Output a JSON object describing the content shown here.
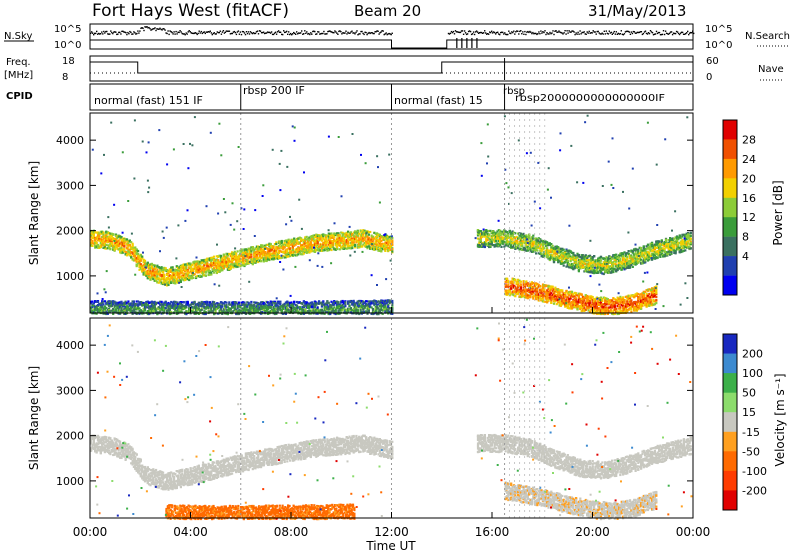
{
  "header": {
    "station": "Fort Hays West (fitACF)",
    "beam": "Beam 20",
    "date": "31/May/2013"
  },
  "panels": {
    "sky": {
      "left_label": "N.Sky",
      "left_ticks": [
        "10^5",
        "10^0"
      ],
      "right_ticks": [
        "10^5",
        "10^0"
      ],
      "right_label": "N.Search"
    },
    "freq": {
      "left_label_1": "Freq.",
      "left_label_2": "[MHz]",
      "left_ticks": [
        "18",
        "8"
      ],
      "right_ticks": [
        "60",
        "0"
      ],
      "right_label": "Nave"
    },
    "cpid": {
      "label": "CPID",
      "segments": [
        {
          "text": "normal (fast) 151 IF",
          "start": 0.0
        },
        {
          "text": "rbsp 200 IF",
          "start": 6.0
        },
        {
          "text": "normal (fast) 15",
          "start": 12.0
        },
        {
          "text": "rbsp",
          "start": 16.5
        }
      ],
      "dense_label": "rbsp2000000000000000IF"
    }
  },
  "colorbars": {
    "power": {
      "label": "Power [dB]",
      "ticks": [
        "28",
        "24",
        "20",
        "16",
        "12",
        "8",
        "4"
      ],
      "colors": [
        "#e00000",
        "#f05000",
        "#ff9a00",
        "#f2d000",
        "#8ccc38",
        "#3a9c3a",
        "#3a7060",
        "#2040b0",
        "#0000f0"
      ]
    },
    "velocity": {
      "label": "Velocity [m s⁻¹]",
      "ticks": [
        "200",
        "100",
        "50",
        "15",
        "-15",
        "-50",
        "-100",
        "-200"
      ],
      "colors": [
        "#1828c0",
        "#3c8ad0",
        "#3cb04a",
        "#8cdc6c",
        "#c8c8c0",
        "#ffa020",
        "#ff6a00",
        "#ff3c00",
        "#e00000"
      ]
    }
  },
  "axes": {
    "ylabel": "Slant Range [km]",
    "xlabel": "Time UT",
    "yticks": [
      "4000",
      "3000",
      "2000",
      "1000"
    ],
    "xticks": [
      "00:00",
      "04:00",
      "08:00",
      "12:00",
      "16:00",
      "20:00",
      "00:00"
    ]
  },
  "chart_data": [
    {
      "type": "heatmap",
      "title": "Power [dB]",
      "xlabel": "",
      "ylabel": "Slant Range [km]",
      "xlim": [
        0,
        24
      ],
      "ylim": [
        180,
        4600
      ],
      "clim": [
        0,
        30
      ],
      "bands": [
        {
          "t": [
            0,
            0.8,
            1.5,
            2.2,
            3.0,
            4.5,
            6.0,
            7.5,
            9.0,
            10.0,
            10.8,
            12.0
          ],
          "range": [
            1850,
            1800,
            1650,
            1150,
            1000,
            1200,
            1420,
            1600,
            1750,
            1800,
            1850,
            1700
          ],
          "power": 18
        },
        {
          "t": [
            15.4,
            16.5,
            17.5,
            18.5,
            19.5,
            20.5,
            21.5,
            22.5,
            23.9
          ],
          "range": [
            1850,
            1850,
            1750,
            1500,
            1300,
            1250,
            1400,
            1600,
            1800
          ],
          "power": 14
        },
        {
          "t": [
            16.5,
            18.0,
            19.0,
            20.0,
            20.8,
            21.6,
            22.5
          ],
          "range": [
            800,
            650,
            500,
            380,
            350,
            420,
            600
          ],
          "power": 22
        },
        {
          "t": [
            0,
            2.0,
            4.0,
            6.0,
            8.0,
            10.0,
            12.0
          ],
          "range": [
            280,
            270,
            260,
            260,
            270,
            280,
            300
          ],
          "power": 8
        }
      ],
      "gaps": [
        [
          12.0,
          15.3
        ]
      ]
    },
    {
      "type": "heatmap",
      "title": "Velocity [m s⁻¹]",
      "xlabel": "Time UT",
      "ylabel": "Slant Range [km]",
      "xlim": [
        0,
        24
      ],
      "ylim": [
        180,
        4600
      ],
      "clim": [
        -200,
        200
      ],
      "bands": [
        {
          "t": [
            0,
            0.8,
            1.5,
            2.2,
            3.0,
            4.5,
            6.0,
            7.5,
            9.0,
            10.0,
            10.8,
            12.0
          ],
          "range": [
            1850,
            1800,
            1650,
            1150,
            1000,
            1200,
            1420,
            1600,
            1750,
            1800,
            1850,
            1700
          ],
          "velocity": 0
        },
        {
          "t": [
            15.4,
            16.5,
            17.5,
            18.5,
            19.5,
            20.5,
            21.5,
            22.5,
            23.9
          ],
          "range": [
            1850,
            1850,
            1750,
            1500,
            1300,
            1250,
            1400,
            1600,
            1800
          ],
          "velocity": 0
        },
        {
          "t": [
            16.5,
            18.0,
            19.0,
            20.0,
            20.8,
            21.6,
            22.5
          ],
          "range": [
            800,
            650,
            500,
            380,
            350,
            420,
            600
          ],
          "velocity": -10
        },
        {
          "t": [
            3.0,
            5.0,
            7.0,
            9.0,
            10.5
          ],
          "range": [
            300,
            280,
            290,
            300,
            320
          ],
          "velocity": -80
        }
      ],
      "gaps": [
        [
          12.0,
          15.3
        ]
      ]
    }
  ]
}
